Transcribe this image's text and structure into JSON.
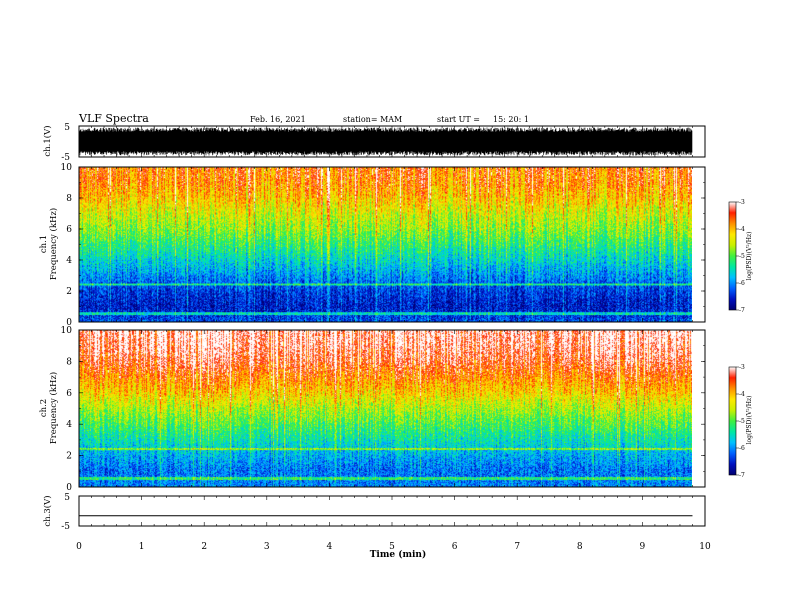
{
  "header": {
    "title": "VLF Spectra",
    "date": "Feb. 16, 2021",
    "station": "station= MAM",
    "start_ut_label": "start  UT  =",
    "start_ut_value": "15: 20: 1"
  },
  "chart_data": [
    {
      "type": "line",
      "panel": "ch1-waveform",
      "ylabel": "ch.1(V)",
      "ylim": [
        -5,
        5
      ],
      "yticks": [
        "5",
        "-5"
      ],
      "x_unit": "min",
      "xlim": [
        0,
        10
      ],
      "data_extent_min": 9.8,
      "description_of_values": "dense oscillating waveform with amplitude near full scale (about -4.5 to 4.5 V)",
      "color": "#000000"
    },
    {
      "type": "heatmap",
      "panel": "ch1-spectrogram",
      "ylabel_line1": "ch.1",
      "ylabel_line2": "Frequency (kHz)",
      "ylim": [
        0,
        10
      ],
      "yticks": [
        "0",
        "2",
        "4",
        "6",
        "8",
        "10"
      ],
      "xlim": [
        0,
        10
      ],
      "data_extent_min": 9.8,
      "level_profile": {
        "freq_khz": [
          0,
          1,
          2,
          3,
          4,
          5,
          6,
          7,
          8,
          9,
          10
        ],
        "log_psd": [
          -6.3,
          -6.6,
          -6.4,
          -6.0,
          -5.6,
          -5.2,
          -4.8,
          -4.5,
          -4.1,
          -3.8,
          -3.7
        ]
      },
      "colorbar": {
        "label": "log(PSD)(V²/Hz)",
        "range": [
          -7,
          -3
        ],
        "ticks": [
          "-3",
          "-4",
          "-5",
          "-6",
          "-7"
        ]
      }
    },
    {
      "type": "heatmap",
      "panel": "ch2-spectrogram",
      "ylabel_line1": "ch.2",
      "ylabel_line2": "Frequency (kHz)",
      "ylim": [
        0,
        10
      ],
      "yticks": [
        "0",
        "2",
        "4",
        "6",
        "8",
        "10"
      ],
      "xlim": [
        0,
        10
      ],
      "data_extent_min": 9.8,
      "level_profile": {
        "freq_khz": [
          0,
          1,
          2,
          3,
          4,
          5,
          6,
          7,
          8,
          9,
          10
        ],
        "log_psd": [
          -6.2,
          -6.3,
          -6.0,
          -5.6,
          -5.2,
          -4.8,
          -4.3,
          -3.9,
          -3.5,
          -3.3,
          -3.2
        ]
      },
      "colorbar": {
        "label": "log(PSD)(V²/Hz)",
        "range": [
          -7,
          -3
        ],
        "ticks": [
          "-3",
          "-4",
          "-5",
          "-6",
          "-7"
        ]
      }
    },
    {
      "type": "line",
      "panel": "ch3-waveform",
      "ylabel": "ch.3(V)",
      "ylim": [
        -5,
        5
      ],
      "yticks": [
        "5",
        "-5"
      ],
      "x": [
        0,
        9.8
      ],
      "y": [
        -1.6,
        -1.6
      ],
      "color": "#000000"
    }
  ],
  "xaxis": {
    "label": "Time (min)",
    "ticks": [
      "0",
      "1",
      "2",
      "3",
      "4",
      "5",
      "6",
      "7",
      "8",
      "9",
      "10"
    ]
  },
  "colors": {
    "colormap": [
      "#000070",
      "#0010c0",
      "#0060ff",
      "#00c0ff",
      "#00e8a0",
      "#40f040",
      "#c8f000",
      "#ffe800",
      "#ff9000",
      "#ff2000",
      "#ffffff"
    ]
  }
}
